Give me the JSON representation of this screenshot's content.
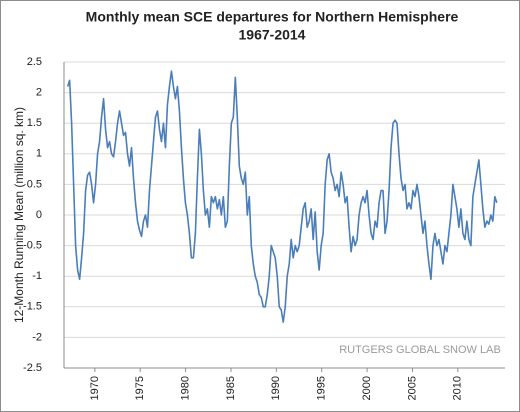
{
  "chart_data": {
    "type": "line",
    "title": "Monthly mean SCE departures for Northern Hemisphere",
    "subtitle": "1967-2014",
    "y_label": "12-Month Running Mean (million sq. km)",
    "annotation": "RUTGERS GLOBAL SNOW LAB",
    "color": "#4a7ebb",
    "grid": true,
    "xlim": [
      1966.6,
      2015.2
    ],
    "xticks": [
      1970,
      1975,
      1980,
      1985,
      1990,
      1995,
      2000,
      2005,
      2010
    ],
    "ylim": [
      -2.5,
      2.5
    ],
    "yticks": [
      -2.5,
      -2,
      -1.5,
      -1,
      -0.5,
      0,
      0.5,
      1,
      1.5,
      2,
      2.5
    ],
    "x": [
      1967,
      1967.22,
      1967.44,
      1967.66,
      1967.88,
      1968.1,
      1968.32,
      1968.54,
      1968.76,
      1968.98,
      1969.2,
      1969.42,
      1969.64,
      1969.86,
      1970.08,
      1970.3,
      1970.52,
      1970.74,
      1970.96,
      1971.18,
      1971.4,
      1971.62,
      1971.84,
      1972.06,
      1972.28,
      1972.5,
      1972.72,
      1972.94,
      1973.16,
      1973.38,
      1973.6,
      1973.82,
      1974.04,
      1974.26,
      1974.48,
      1974.7,
      1974.92,
      1975.14,
      1975.36,
      1975.58,
      1975.8,
      1976.02,
      1976.24,
      1976.46,
      1976.68,
      1976.9,
      1977.12,
      1977.34,
      1977.56,
      1977.78,
      1978,
      1978.22,
      1978.44,
      1978.66,
      1978.88,
      1979.1,
      1979.32,
      1979.54,
      1979.76,
      1979.98,
      1980.2,
      1980.42,
      1980.64,
      1980.86,
      1981.08,
      1981.3,
      1981.52,
      1981.74,
      1981.96,
      1982.18,
      1982.4,
      1982.62,
      1982.84,
      1983.06,
      1983.28,
      1983.5,
      1983.72,
      1983.94,
      1984.16,
      1984.38,
      1984.6,
      1984.82,
      1985.04,
      1985.26,
      1985.48,
      1985.7,
      1985.92,
      1986.14,
      1986.36,
      1986.58,
      1986.8,
      1987.02,
      1987.24,
      1987.46,
      1987.68,
      1987.9,
      1988.12,
      1988.34,
      1988.56,
      1988.78,
      1989,
      1989.22,
      1989.44,
      1989.66,
      1989.88,
      1990.1,
      1990.32,
      1990.54,
      1990.76,
      1990.98,
      1991.2,
      1991.42,
      1991.64,
      1991.86,
      1992.08,
      1992.3,
      1992.52,
      1992.74,
      1992.96,
      1993.18,
      1993.4,
      1993.62,
      1993.84,
      1994.06,
      1994.28,
      1994.5,
      1994.72,
      1994.94,
      1995.16,
      1995.38,
      1995.6,
      1995.82,
      1996.04,
      1996.26,
      1996.48,
      1996.7,
      1996.92,
      1997.14,
      1997.36,
      1997.58,
      1997.8,
      1998.02,
      1998.24,
      1998.46,
      1998.68,
      1998.9,
      1999.12,
      1999.34,
      1999.56,
      1999.78,
      2000,
      2000.22,
      2000.44,
      2000.66,
      2000.88,
      2001.1,
      2001.32,
      2001.54,
      2001.76,
      2001.98,
      2002.2,
      2002.42,
      2002.64,
      2002.86,
      2003.08,
      2003.3,
      2003.52,
      2003.74,
      2003.96,
      2004.18,
      2004.4,
      2004.62,
      2004.84,
      2005.06,
      2005.28,
      2005.5,
      2005.72,
      2005.94,
      2006.16,
      2006.38,
      2006.6,
      2006.82,
      2007.04,
      2007.26,
      2007.48,
      2007.7,
      2007.92,
      2008.14,
      2008.36,
      2008.58,
      2008.8,
      2009.02,
      2009.24,
      2009.46,
      2009.68,
      2009.9,
      2010.12,
      2010.34,
      2010.56,
      2010.78,
      2011,
      2011.22,
      2011.44,
      2011.66,
      2011.88,
      2012.1,
      2012.32,
      2012.54,
      2012.76,
      2012.98,
      2013.2,
      2013.42,
      2013.64,
      2013.86,
      2014.08,
      2014.3
    ],
    "values": [
      2.1,
      2.2,
      1.5,
      0.5,
      -0.5,
      -0.9,
      -1.05,
      -0.7,
      -0.3,
      0.4,
      0.65,
      0.7,
      0.5,
      0.2,
      0.5,
      1.0,
      1.2,
      1.6,
      1.9,
      1.4,
      1.1,
      1.2,
      1.0,
      0.95,
      1.2,
      1.5,
      1.7,
      1.5,
      1.3,
      1.35,
      1.0,
      0.8,
      1.1,
      0.6,
      0.2,
      -0.1,
      -0.25,
      -0.35,
      -0.1,
      0.0,
      -0.2,
      0.4,
      0.8,
      1.2,
      1.6,
      1.7,
      1.4,
      1.2,
      1.5,
      1.1,
      1.8,
      2.1,
      2.35,
      2.1,
      1.9,
      2.1,
      1.7,
      1.1,
      0.6,
      0.2,
      0.0,
      -0.3,
      -0.7,
      -0.7,
      -0.3,
      0.6,
      1.4,
      1.0,
      0.4,
      0.0,
      0.1,
      -0.2,
      0.3,
      0.2,
      0.3,
      0.1,
      0.25,
      0.0,
      0.3,
      -0.2,
      -0.1,
      0.8,
      1.5,
      1.6,
      2.25,
      1.6,
      0.8,
      0.6,
      0.5,
      0.7,
      0.0,
      0.3,
      -0.5,
      -0.8,
      -1.0,
      -1.1,
      -1.3,
      -1.35,
      -1.5,
      -1.5,
      -1.3,
      -1.0,
      -0.5,
      -0.6,
      -0.7,
      -1.0,
      -1.5,
      -1.55,
      -1.75,
      -1.5,
      -1.0,
      -0.8,
      -0.4,
      -0.7,
      -0.5,
      -0.6,
      -0.5,
      -0.2,
      0.1,
      0.2,
      -0.2,
      -0.1,
      0.1,
      -0.4,
      0.05,
      -0.6,
      -0.9,
      -0.5,
      -0.3,
      0.5,
      0.9,
      1.0,
      0.7,
      0.6,
      0.4,
      0.5,
      0.3,
      0.7,
      0.5,
      0.2,
      0.3,
      -0.2,
      -0.6,
      -0.35,
      -0.5,
      -0.4,
      0.0,
      0.2,
      0.3,
      0.2,
      0.4,
      0.0,
      -0.3,
      -0.4,
      -0.1,
      -0.2,
      0.2,
      0.4,
      0.4,
      -0.3,
      -0.1,
      0.4,
      1.1,
      1.5,
      1.55,
      1.5,
      1.0,
      0.6,
      0.4,
      0.5,
      0.1,
      0.2,
      0.1,
      0.4,
      0.3,
      0.5,
      0.3,
      0.0,
      -0.3,
      -0.1,
      -0.5,
      -0.8,
      -1.05,
      -0.5,
      -0.3,
      -0.5,
      -0.4,
      -0.6,
      -0.8,
      -0.5,
      -0.6,
      -0.3,
      0.0,
      0.5,
      0.3,
      0.1,
      -0.2,
      0.1,
      -0.3,
      -0.4,
      -0.1,
      -0.4,
      -0.5,
      0.3,
      0.5,
      0.7,
      0.9,
      0.5,
      0.1,
      -0.2,
      -0.1,
      -0.15,
      0.0,
      -0.1,
      0.3,
      0.2
    ]
  }
}
